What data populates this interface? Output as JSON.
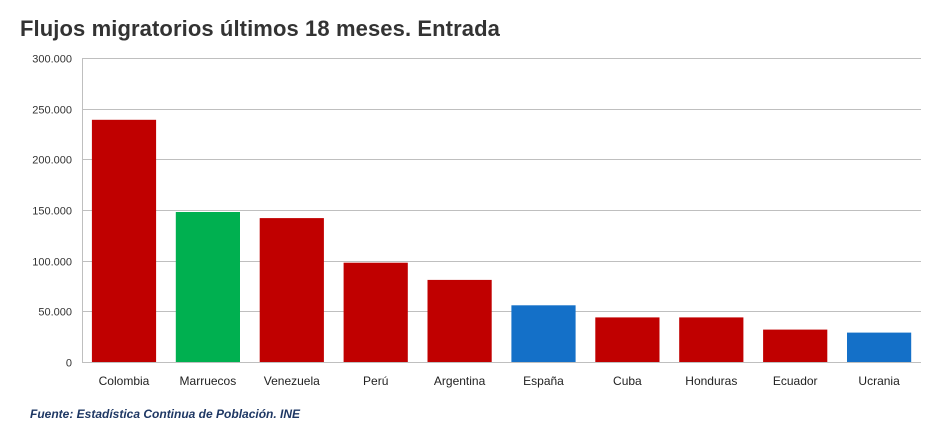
{
  "chart_data": {
    "type": "bar",
    "title": "Flujos migratorios últimos 18 meses. Entrada",
    "source": "Fuente: Estadística Continua de Población. INE",
    "categories": [
      "Colombia",
      "Marruecos",
      "Venezuela",
      "Perú",
      "Argentina",
      "España",
      "Cuba",
      "Honduras",
      "Ecuador",
      "Ucrania"
    ],
    "values": [
      239000,
      148000,
      142000,
      98000,
      81000,
      56000,
      44000,
      44000,
      32000,
      29000
    ],
    "colors": [
      "#c00000",
      "#00b050",
      "#c00000",
      "#c00000",
      "#c00000",
      "#1470c8",
      "#c00000",
      "#c00000",
      "#c00000",
      "#1470c8"
    ],
    "ylim": [
      0,
      300000
    ],
    "yticks": [
      0,
      50000,
      100000,
      150000,
      200000,
      250000,
      300000
    ],
    "ytick_labels": [
      "0",
      "50.000",
      "100.000",
      "150.000",
      "200.000",
      "250.000",
      "300.000"
    ],
    "grid": true,
    "gridline_color": "#bfbfbf",
    "xlabel": "",
    "ylabel": ""
  }
}
